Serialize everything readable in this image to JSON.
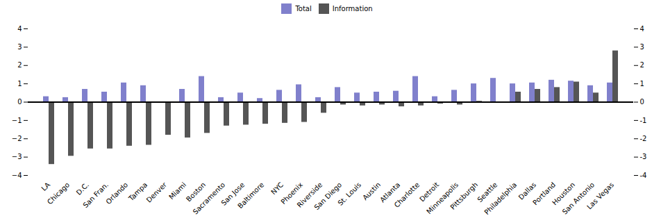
{
  "chart_data": {
    "type": "bar",
    "categories": [
      "LA",
      "Chicago",
      "D.C.",
      "San Fran.",
      "Orlando",
      "Tampa",
      "Denver",
      "Miami",
      "Boston",
      "Sacramento",
      "San Jose",
      "Baltimore",
      "NYC",
      "Phoenix",
      "Riverside",
      "San Diego",
      "St. Louis",
      "Austin",
      "Atlanta",
      "Charlotte",
      "Detroit",
      "Minneapolis",
      "Pittsburgh",
      "Seattle",
      "Philadelphia",
      "Dallas",
      "Portland",
      "Houston",
      "San Antonio",
      "Las Vegas"
    ],
    "series": [
      {
        "name": "Total",
        "color": "#8080cc",
        "values": [
          0.3,
          0.25,
          0.7,
          0.55,
          1.05,
          0.9,
          0.0,
          0.7,
          1.4,
          0.25,
          0.5,
          0.2,
          0.65,
          0.95,
          0.25,
          0.8,
          0.5,
          0.55,
          0.6,
          1.4,
          0.3,
          0.65,
          1.0,
          1.3,
          1.0,
          1.05,
          1.2,
          1.15,
          0.9,
          1.05
        ]
      },
      {
        "name": "Information",
        "color": "#555555",
        "values": [
          -3.4,
          -2.95,
          -2.55,
          -2.55,
          -2.4,
          -2.35,
          -1.8,
          -1.95,
          -1.7,
          -1.3,
          -1.25,
          -1.2,
          -1.15,
          -1.1,
          -0.6,
          -0.15,
          -0.2,
          -0.15,
          -0.25,
          -0.2,
          -0.1,
          -0.15,
          0.05,
          -0.05,
          0.55,
          0.7,
          0.8,
          1.1,
          0.5,
          2.8
        ]
      }
    ],
    "ylim": [
      -4,
      4
    ],
    "yticks": [
      -4,
      -3,
      -2,
      -1,
      0,
      1,
      2,
      3,
      4
    ],
    "y2lim": [
      -4,
      4
    ],
    "y2ticks": [
      -4,
      -3,
      -2,
      -1,
      0,
      1,
      2,
      3,
      4
    ],
    "legend": "top"
  }
}
